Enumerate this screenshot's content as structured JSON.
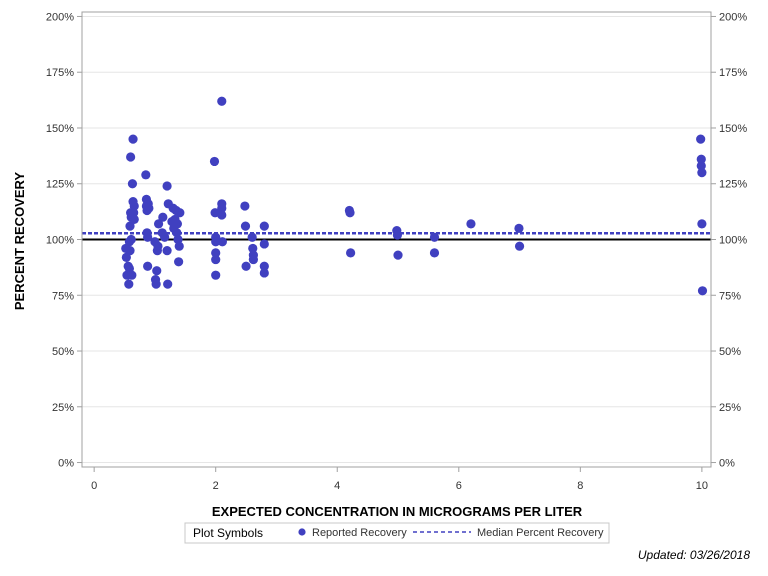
{
  "colors": {
    "point": "#4040C0",
    "median_line": "#4040C0",
    "reference_line": "#000000",
    "grid": "#E6E6E6",
    "frame": "#A0A0A0"
  },
  "chart_data": {
    "type": "scatter",
    "xlabel": "EXPECTED CONCENTRATION IN MICROGRAMS PER LITER",
    "ylabel": "PERCENT RECOVERY",
    "xlim": [
      -0.2,
      10.15
    ],
    "ylim": [
      -2,
      202
    ],
    "x_ticks": [
      0,
      2,
      4,
      6,
      8,
      10
    ],
    "y_ticks": [
      0,
      25,
      50,
      75,
      100,
      125,
      150,
      175,
      200
    ],
    "y_tick_labels": [
      "0%",
      "25%",
      "50%",
      "75%",
      "100%",
      "125%",
      "150%",
      "175%",
      "200%"
    ],
    "grid": true,
    "y_axis_mirrored_right": true,
    "reference_line_y": 100,
    "median_percent_recovery": 102.8,
    "series": [
      {
        "name": "Reported Recovery",
        "marker": "circle",
        "points": [
          [
            0.52,
            96
          ],
          [
            0.53,
            92
          ],
          [
            0.54,
            84
          ],
          [
            0.56,
            88
          ],
          [
            0.57,
            80
          ],
          [
            0.58,
            87
          ],
          [
            0.58,
            99
          ],
          [
            0.59,
            95
          ],
          [
            0.59,
            106
          ],
          [
            0.6,
            112
          ],
          [
            0.6,
            137
          ],
          [
            0.61,
            100
          ],
          [
            0.61,
            110
          ],
          [
            0.62,
            84
          ],
          [
            0.62,
            110
          ],
          [
            0.63,
            125
          ],
          [
            0.64,
            145
          ],
          [
            0.64,
            117
          ],
          [
            0.65,
            112
          ],
          [
            0.66,
            109
          ],
          [
            0.66,
            115
          ],
          [
            0.85,
            129
          ],
          [
            0.86,
            118
          ],
          [
            0.86,
            115
          ],
          [
            0.87,
            113
          ],
          [
            0.87,
            103
          ],
          [
            0.88,
            101
          ],
          [
            0.88,
            88
          ],
          [
            0.89,
            116
          ],
          [
            0.9,
            114
          ],
          [
            1.0,
            99
          ],
          [
            1.01,
            82
          ],
          [
            1.02,
            80
          ],
          [
            1.03,
            86
          ],
          [
            1.04,
            95
          ],
          [
            1.05,
            97
          ],
          [
            1.06,
            107
          ],
          [
            1.12,
            103
          ],
          [
            1.13,
            110
          ],
          [
            1.16,
            101
          ],
          [
            1.2,
            124
          ],
          [
            1.2,
            95
          ],
          [
            1.21,
            80
          ],
          [
            1.22,
            116
          ],
          [
            1.28,
            108
          ],
          [
            1.3,
            114
          ],
          [
            1.31,
            105
          ],
          [
            1.33,
            109
          ],
          [
            1.35,
            113
          ],
          [
            1.36,
            103
          ],
          [
            1.37,
            107
          ],
          [
            1.38,
            100
          ],
          [
            1.39,
            90
          ],
          [
            1.4,
            97
          ],
          [
            1.41,
            112
          ],
          [
            1.98,
            135
          ],
          [
            1.99,
            112
          ],
          [
            2.0,
            101
          ],
          [
            2.0,
            99
          ],
          [
            2.0,
            94
          ],
          [
            2.0,
            91
          ],
          [
            2.0,
            84
          ],
          [
            2.1,
            162
          ],
          [
            2.1,
            116
          ],
          [
            2.1,
            114
          ],
          [
            2.1,
            111
          ],
          [
            2.11,
            99
          ],
          [
            2.48,
            115
          ],
          [
            2.49,
            106
          ],
          [
            2.5,
            88
          ],
          [
            2.6,
            101
          ],
          [
            2.61,
            96
          ],
          [
            2.62,
            93
          ],
          [
            2.62,
            91
          ],
          [
            2.8,
            106
          ],
          [
            2.8,
            98
          ],
          [
            2.8,
            88
          ],
          [
            2.8,
            85
          ],
          [
            4.2,
            113
          ],
          [
            4.21,
            112
          ],
          [
            4.22,
            94
          ],
          [
            4.98,
            104
          ],
          [
            4.99,
            102
          ],
          [
            5.0,
            93
          ],
          [
            5.6,
            101
          ],
          [
            5.6,
            94
          ],
          [
            6.2,
            107
          ],
          [
            6.99,
            105
          ],
          [
            7.0,
            97
          ],
          [
            9.98,
            145
          ],
          [
            9.99,
            136
          ],
          [
            9.99,
            133
          ],
          [
            10.0,
            130
          ],
          [
            10.0,
            107
          ],
          [
            10.01,
            77
          ]
        ]
      },
      {
        "name": "Median Percent Recovery",
        "line_style": "dashed"
      }
    ]
  },
  "legend": {
    "title": "Plot Symbols",
    "items": [
      {
        "label": "Reported Recovery",
        "symbol": "circle"
      },
      {
        "label": "Median Percent Recovery",
        "symbol": "dashed-line"
      }
    ]
  },
  "footer": {
    "updated": "Updated: 03/26/2018"
  }
}
